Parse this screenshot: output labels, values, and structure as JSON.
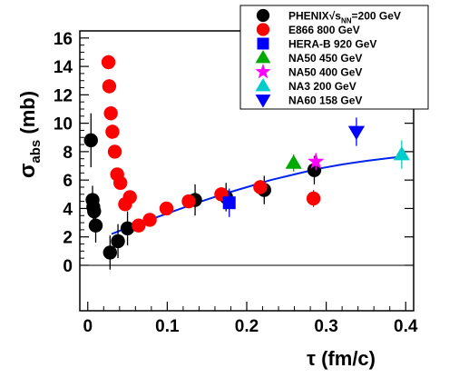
{
  "chart_data": {
    "type": "scatter",
    "title": "",
    "xlabel": {
      "main": "τ (fm/c)"
    },
    "ylabel": {
      "symbol": "σ",
      "subscript": "abs",
      "unit": " (mb)"
    },
    "xlim": [
      -0.01,
      0.41
    ],
    "ylim": [
      -3.2,
      16.5
    ],
    "xticks": [
      {
        "v": 0,
        "label": "0"
      },
      {
        "v": 0.1,
        "label": "0.1"
      },
      {
        "v": 0.2,
        "label": "0.2"
      },
      {
        "v": 0.3,
        "label": "0.3"
      },
      {
        "v": 0.4,
        "label": "0.4"
      }
    ],
    "yticks": [
      {
        "v": 0,
        "label": "0"
      },
      {
        "v": 2,
        "label": "2"
      },
      {
        "v": 4,
        "label": "4"
      },
      {
        "v": 6,
        "label": "6"
      },
      {
        "v": 8,
        "label": "8"
      },
      {
        "v": 10,
        "label": "10"
      },
      {
        "v": 12,
        "label": "12"
      },
      {
        "v": 14,
        "label": "14"
      },
      {
        "v": 16,
        "label": "16"
      }
    ],
    "zero_line": true,
    "legend_position": "top-right",
    "series": [
      {
        "name": "PHENIX",
        "legend_extra": "√s",
        "legend_sub": "NN",
        "legend_tail": "=200 GeV",
        "marker": "circle",
        "color": "#000000",
        "points": [
          {
            "x": 0.004,
            "y": 8.8,
            "err": 1.9
          },
          {
            "x": 0.006,
            "y": 4.6,
            "err": 1.0
          },
          {
            "x": 0.007,
            "y": 4.1,
            "err": 0.9
          },
          {
            "x": 0.008,
            "y": 3.8,
            "err": 0.9
          },
          {
            "x": 0.01,
            "y": 2.8,
            "err": 1.2
          },
          {
            "x": 0.028,
            "y": 0.9,
            "err": 1.2
          },
          {
            "x": 0.038,
            "y": 1.7,
            "err": 1.2
          },
          {
            "x": 0.05,
            "y": 2.6,
            "err": 1.2
          },
          {
            "x": 0.135,
            "y": 4.6,
            "err": 1.1
          },
          {
            "x": 0.174,
            "y": 4.8,
            "err": 1.0
          },
          {
            "x": 0.222,
            "y": 5.3,
            "err": 1.0
          },
          {
            "x": 0.285,
            "y": 6.7,
            "err": 1.0
          }
        ]
      },
      {
        "name": "E866 800 GeV",
        "marker": "circle",
        "color": "#ff0000",
        "points": [
          {
            "x": 0.026,
            "y": 14.3,
            "err": 0.5
          },
          {
            "x": 0.027,
            "y": 12.6,
            "err": 0.5
          },
          {
            "x": 0.029,
            "y": 10.7,
            "err": 0.5
          },
          {
            "x": 0.031,
            "y": 9.4,
            "err": 0.5
          },
          {
            "x": 0.034,
            "y": 8.0,
            "err": 0.4
          },
          {
            "x": 0.037,
            "y": 6.4,
            "err": 0.4
          },
          {
            "x": 0.041,
            "y": 5.8,
            "err": 0.4
          },
          {
            "x": 0.047,
            "y": 4.3,
            "err": 0.4
          },
          {
            "x": 0.053,
            "y": 4.8,
            "err": 0.4
          },
          {
            "x": 0.064,
            "y": 2.8,
            "err": 0.4
          },
          {
            "x": 0.078,
            "y": 3.2,
            "err": 0.4
          },
          {
            "x": 0.099,
            "y": 4.0,
            "err": 0.4
          },
          {
            "x": 0.127,
            "y": 4.5,
            "err": 0.4
          },
          {
            "x": 0.168,
            "y": 5.0,
            "err": 0.4
          },
          {
            "x": 0.217,
            "y": 5.5,
            "err": 0.5
          },
          {
            "x": 0.284,
            "y": 4.7,
            "err": 0.6
          }
        ]
      },
      {
        "name": "HERA-B 920 GeV",
        "marker": "square",
        "color": "#0000ff",
        "points": [
          {
            "x": 0.178,
            "y": 4.4,
            "err": 1.0
          }
        ]
      },
      {
        "name": "NA50 450 GeV",
        "marker": "triangle-up",
        "color": "#00aa00",
        "points": [
          {
            "x": 0.259,
            "y": 7.2,
            "err": 0.6
          }
        ]
      },
      {
        "name": "NA50 400 GeV",
        "marker": "star",
        "color": "#ff00ff",
        "points": [
          {
            "x": 0.287,
            "y": 7.3,
            "err": 0.6
          }
        ]
      },
      {
        "name": "NA3 200 GeV",
        "marker": "triangle-up",
        "color": "#00cccc",
        "points": [
          {
            "x": 0.395,
            "y": 7.8,
            "err": 1.0
          }
        ]
      },
      {
        "name": "NA60 158 GeV",
        "marker": "triangle-down",
        "color": "#0000ff",
        "points": [
          {
            "x": 0.338,
            "y": 9.4,
            "err": 1.0
          }
        ]
      }
    ],
    "fit_curve": {
      "color": "#0022ee",
      "x": [
        0.03,
        0.05,
        0.08,
        0.11,
        0.14,
        0.17,
        0.2,
        0.23,
        0.26,
        0.29,
        0.32,
        0.35,
        0.38,
        0.395
      ],
      "y": [
        2.2,
        2.65,
        3.25,
        3.85,
        4.45,
        5.0,
        5.5,
        6.0,
        6.4,
        6.8,
        7.1,
        7.35,
        7.55,
        7.65
      ]
    }
  }
}
